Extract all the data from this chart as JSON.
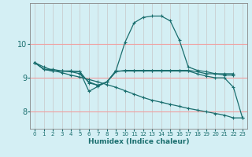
{
  "xlabel": "Humidex (Indice chaleur)",
  "ylabel": "",
  "xlim": [
    -0.5,
    23.5
  ],
  "ylim": [
    7.5,
    11.2
  ],
  "yticks": [
    8,
    9,
    10
  ],
  "xticks": [
    0,
    1,
    2,
    3,
    4,
    5,
    6,
    7,
    8,
    9,
    10,
    11,
    12,
    13,
    14,
    15,
    16,
    17,
    18,
    19,
    20,
    21,
    22,
    23
  ],
  "bg_color": "#d4eff4",
  "grid_color_v": "#c8c8c8",
  "grid_color_h": "#f0a0a0",
  "line_color": "#1a6e6e",
  "lines": {
    "line1": {
      "x": [
        0,
        1,
        2,
        3,
        4,
        5,
        6,
        7,
        8,
        9,
        10,
        11,
        12,
        13,
        14,
        15,
        16,
        17,
        18,
        19,
        20,
        21,
        22
      ],
      "y": [
        9.45,
        9.25,
        9.25,
        9.2,
        9.2,
        9.18,
        8.85,
        8.78,
        8.88,
        9.22,
        10.05,
        10.62,
        10.78,
        10.82,
        10.82,
        10.68,
        10.12,
        9.32,
        9.22,
        9.18,
        9.12,
        9.12,
        9.12
      ]
    },
    "line2": {
      "x": [
        0,
        1,
        2,
        3,
        4,
        5,
        6,
        7,
        8,
        9,
        10,
        11,
        12,
        13,
        14,
        15,
        16,
        17,
        18,
        19,
        20,
        21,
        22
      ],
      "y": [
        9.45,
        9.25,
        9.2,
        9.2,
        9.18,
        9.12,
        8.88,
        8.78,
        8.88,
        9.18,
        9.22,
        9.22,
        9.22,
        9.22,
        9.22,
        9.22,
        9.22,
        9.22,
        9.18,
        9.12,
        9.12,
        9.08,
        9.08
      ]
    },
    "line3": {
      "x": [
        0,
        1,
        2,
        3,
        4,
        5,
        6,
        7,
        8,
        9,
        10,
        11,
        12,
        13,
        14,
        15,
        16,
        17,
        18,
        19,
        20,
        21,
        22,
        23
      ],
      "y": [
        9.45,
        9.25,
        9.2,
        9.2,
        9.2,
        9.18,
        8.6,
        8.75,
        8.88,
        9.2,
        9.2,
        9.2,
        9.2,
        9.2,
        9.2,
        9.2,
        9.2,
        9.2,
        9.12,
        9.05,
        9.0,
        9.0,
        8.72,
        7.82
      ]
    },
    "line4": {
      "x": [
        0,
        1,
        2,
        3,
        4,
        5,
        6,
        7,
        8,
        9,
        10,
        11,
        12,
        13,
        14,
        15,
        16,
        17,
        18,
        19,
        20,
        21,
        22,
        23
      ],
      "y": [
        9.45,
        9.32,
        9.22,
        9.15,
        9.08,
        9.02,
        8.95,
        8.88,
        8.8,
        8.72,
        8.62,
        8.52,
        8.42,
        8.34,
        8.28,
        8.22,
        8.16,
        8.1,
        8.05,
        8.0,
        7.95,
        7.9,
        7.82,
        7.82
      ]
    }
  }
}
